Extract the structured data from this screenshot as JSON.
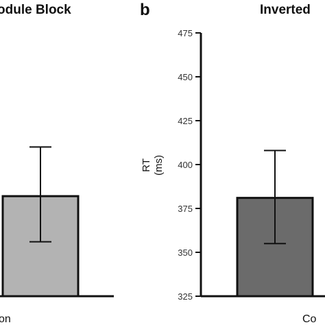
{
  "panels": [
    {
      "letter": "",
      "title": "odule Block",
      "category_text": "on"
    },
    {
      "letter": "b",
      "title": "Inverted",
      "category_text": "Co"
    }
  ],
  "chart_data": [
    {
      "type": "bar",
      "title": "odule Block",
      "categories": [
        "on"
      ],
      "values": [
        382
      ],
      "error": [
        [
          356,
          410
        ]
      ],
      "ylim": [
        325,
        475
      ],
      "grid": false,
      "color": "#b3b3b3"
    },
    {
      "type": "bar",
      "title": "Inverted",
      "categories": [
        "Co"
      ],
      "values": [
        381
      ],
      "error": [
        [
          355,
          408
        ]
      ],
      "ylim": [
        325,
        475
      ],
      "yticks": [
        325,
        350,
        375,
        400,
        425,
        450,
        475
      ],
      "ylabel": "RT",
      "yunit": "(ms)",
      "grid": false,
      "color": "#6b6b6b"
    }
  ]
}
